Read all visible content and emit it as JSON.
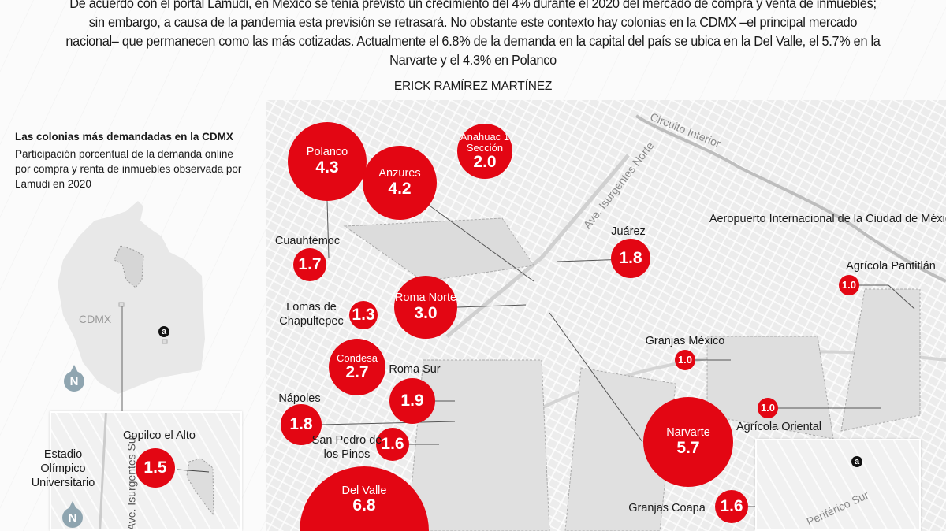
{
  "intro": "De acuerdo con el portal Lamudi, en México se tenía previsto un crecimiento del 4% durante el 2020 del mercado de compra y venta de inmuebles; sin embargo, a causa de la pandemia esta previsión se retrasará. No obstante este contexto hay colonias en la CDMX –el principal mercado nacional– que permanecen como las más cotizadas. Actualmente el 6.8% de la demanda en la capital del país se ubica en la Del Valle, el 5.7% en la Narvarte y el 4.3% en Polanco",
  "byline": "ERICK RAMÍREZ MARTÍNEZ",
  "sidebar": {
    "title": "Las colonias más demandadas en la CDMX",
    "subtitle": "Participación porcentual de la demanda online por compra y renta de inmuebles observada por Lamudi en 2020",
    "overview_label": "CDMX",
    "north": "N",
    "inset_labels": {
      "copilco": "Copilco el Alto",
      "estadio": "Estadio Olímpico Universitario",
      "road": "Ave. Isurgentes Sur"
    }
  },
  "map": {
    "roads": {
      "circuito": "Circuito Interior",
      "insurgentes": "Ave. Isurgentes Norte",
      "periferico": "Periférico Sur"
    },
    "landmarks": {
      "airport": "Aeropuerto Internacional de la Ciudad de México"
    },
    "accent_color": "#e30613",
    "logo_icon": "a",
    "colonias": [
      {
        "name": "Polanco",
        "value": "4.3",
        "label_inside": true
      },
      {
        "name": "Anzures",
        "value": "4.2",
        "label_inside": true
      },
      {
        "name": "Anahuac 1 Sección",
        "value": "2.0",
        "label_inside": true
      },
      {
        "name": "Cuauhtémoc",
        "value": "1.7",
        "label_inside": false
      },
      {
        "name": "Lomas de Chapultepec",
        "value": "1.3",
        "label_inside": false
      },
      {
        "name": "Roma Norte",
        "value": "3.0",
        "label_inside": true
      },
      {
        "name": "Juárez",
        "value": "1.8",
        "label_inside": false
      },
      {
        "name": "Agrícola Pantitlán",
        "value": "1.0",
        "label_inside": false
      },
      {
        "name": "Granjas México",
        "value": "1.0",
        "label_inside": false
      },
      {
        "name": "Condesa",
        "value": "2.7",
        "label_inside": true
      },
      {
        "name": "Roma Sur",
        "value": "1.9",
        "label_inside": false
      },
      {
        "name": "Nápoles",
        "value": "1.8",
        "label_inside": false
      },
      {
        "name": "San Pedro de los Pinos",
        "value": "1.6",
        "label_inside": false
      },
      {
        "name": "Del Valle",
        "value": "6.8",
        "label_inside": true
      },
      {
        "name": "Narvarte",
        "value": "5.7",
        "label_inside": true
      },
      {
        "name": "Agrícola Oriental",
        "value": "1.0",
        "label_inside": false
      },
      {
        "name": "Granjas Coapa",
        "value": "1.6",
        "label_inside": false
      }
    ],
    "copilco": {
      "name": "Copilco el Alto",
      "value": "1.5"
    }
  }
}
